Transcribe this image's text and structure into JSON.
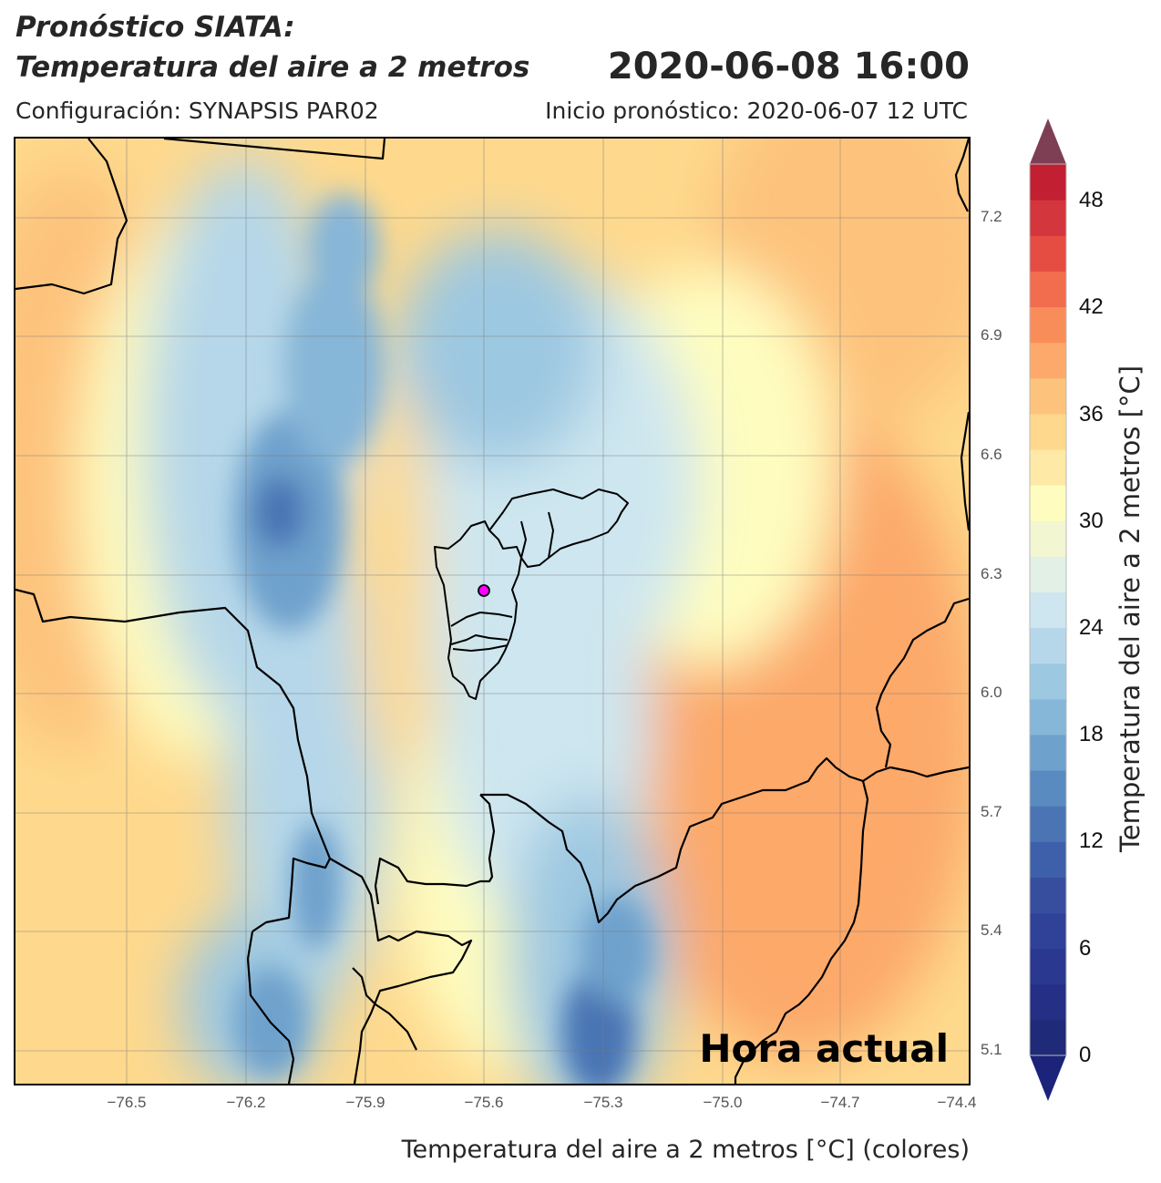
{
  "header": {
    "title_line1": "Pronóstico SIATA:",
    "title_line2": "Temperatura del aire a 2 metros",
    "datetime": "2020-06-08 16:00",
    "config": "Configuración: SYNAPSIS PAR02",
    "init": "Inicio pronóstico: 2020-06-07 12 UTC"
  },
  "map": {
    "overlay_label": "Hora actual",
    "lat_ticks": [
      "7.2",
      "6.9",
      "6.6",
      "6.3",
      "6.0",
      "5.7",
      "5.4",
      "5.1"
    ],
    "lon_ticks": [
      "−76.5",
      "−76.2",
      "−75.9",
      "−75.6",
      "−75.3",
      "−75.0",
      "−74.7",
      "−74.4"
    ],
    "xlabel": "Temperatura del aire a 2 metros [°C] (colores)",
    "marker_color": "#ff00ff"
  },
  "colorbar": {
    "label": "Temperatura del aire a 2 metros [°C]",
    "ticks": [
      "48",
      "42",
      "36",
      "30",
      "24",
      "18",
      "12",
      "6",
      "0"
    ],
    "min": 0,
    "max": 50,
    "step": 2,
    "colors": [
      "#1f2a78",
      "#252f86",
      "#2a3890",
      "#304297",
      "#374e9f",
      "#3e60aa",
      "#4a74b4",
      "#5a8bc0",
      "#6ea1cc",
      "#86b6d8",
      "#9dc8e1",
      "#b5d7e9",
      "#cde6ef",
      "#e2f0e6",
      "#f2f7d2",
      "#fefdbf",
      "#fee9a6",
      "#fed98d",
      "#fdc37d",
      "#fca96b",
      "#f98d5a",
      "#f26c4e",
      "#e54d43",
      "#d3363c",
      "#c22032"
    ],
    "over_color": "#7e3f55",
    "under_color": "#1b237a"
  }
}
